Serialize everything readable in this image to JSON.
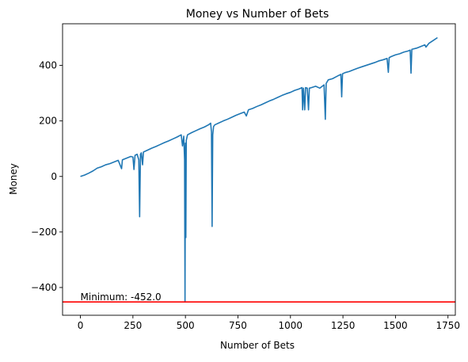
{
  "chart_data": {
    "type": "line",
    "title": "Money vs Number of Bets",
    "xlabel": "Number of Bets",
    "ylabel": "Money",
    "xlim": [
      -85,
      1785
    ],
    "ylim": [
      -500,
      550
    ],
    "xticks": [
      0,
      250,
      500,
      750,
      1000,
      1250,
      1500,
      1750
    ],
    "yticks": [
      -400,
      -200,
      0,
      200,
      400
    ],
    "xtick_labels": [
      "0",
      "250",
      "500",
      "750",
      "1000",
      "1250",
      "1500",
      "1750"
    ],
    "ytick_labels": [
      "−400",
      "−200",
      "0",
      "200",
      "400"
    ],
    "grid": false,
    "line_color": "#1f77b4",
    "series": [
      {
        "values": [
          [
            0,
            0
          ],
          [
            20,
            5
          ],
          [
            40,
            12
          ],
          [
            60,
            20
          ],
          [
            80,
            30
          ],
          [
            100,
            35
          ],
          [
            120,
            42
          ],
          [
            140,
            46
          ],
          [
            160,
            52
          ],
          [
            180,
            58
          ],
          [
            196,
            28
          ],
          [
            200,
            60
          ],
          [
            220,
            66
          ],
          [
            240,
            72
          ],
          [
            250,
            70
          ],
          [
            255,
            25
          ],
          [
            260,
            76
          ],
          [
            270,
            80
          ],
          [
            278,
            60
          ],
          [
            282,
            -145
          ],
          [
            286,
            80
          ],
          [
            290,
            85
          ],
          [
            296,
            42
          ],
          [
            300,
            88
          ],
          [
            320,
            95
          ],
          [
            340,
            102
          ],
          [
            360,
            108
          ],
          [
            380,
            115
          ],
          [
            400,
            122
          ],
          [
            420,
            128
          ],
          [
            440,
            135
          ],
          [
            460,
            142
          ],
          [
            480,
            150
          ],
          [
            486,
            110
          ],
          [
            492,
            145
          ],
          [
            496,
            60
          ],
          [
            498,
            -452
          ],
          [
            500,
            120
          ],
          [
            502,
            -220
          ],
          [
            504,
            130
          ],
          [
            510,
            150
          ],
          [
            530,
            158
          ],
          [
            550,
            165
          ],
          [
            570,
            172
          ],
          [
            590,
            178
          ],
          [
            610,
            186
          ],
          [
            620,
            192
          ],
          [
            624,
            160
          ],
          [
            627,
            -180
          ],
          [
            630,
            150
          ],
          [
            634,
            180
          ],
          [
            640,
            186
          ],
          [
            660,
            193
          ],
          [
            680,
            200
          ],
          [
            700,
            206
          ],
          [
            720,
            213
          ],
          [
            740,
            220
          ],
          [
            760,
            226
          ],
          [
            780,
            232
          ],
          [
            790,
            218
          ],
          [
            800,
            240
          ],
          [
            820,
            245
          ],
          [
            840,
            252
          ],
          [
            860,
            258
          ],
          [
            880,
            265
          ],
          [
            900,
            272
          ],
          [
            920,
            278
          ],
          [
            940,
            285
          ],
          [
            960,
            292
          ],
          [
            980,
            298
          ],
          [
            1000,
            303
          ],
          [
            1020,
            310
          ],
          [
            1040,
            315
          ],
          [
            1055,
            320
          ],
          [
            1058,
            240
          ],
          [
            1062,
            318
          ],
          [
            1068,
            240
          ],
          [
            1072,
            320
          ],
          [
            1080,
            318
          ],
          [
            1086,
            240
          ],
          [
            1090,
            318
          ],
          [
            1100,
            320
          ],
          [
            1120,
            325
          ],
          [
            1140,
            318
          ],
          [
            1160,
            330
          ],
          [
            1166,
            206
          ],
          [
            1170,
            335
          ],
          [
            1180,
            348
          ],
          [
            1200,
            352
          ],
          [
            1220,
            360
          ],
          [
            1240,
            368
          ],
          [
            1244,
            287
          ],
          [
            1248,
            370
          ],
          [
            1260,
            374
          ],
          [
            1280,
            378
          ],
          [
            1300,
            384
          ],
          [
            1320,
            390
          ],
          [
            1340,
            395
          ],
          [
            1360,
            400
          ],
          [
            1380,
            405
          ],
          [
            1400,
            410
          ],
          [
            1420,
            416
          ],
          [
            1440,
            420
          ],
          [
            1460,
            425
          ],
          [
            1466,
            375
          ],
          [
            1470,
            428
          ],
          [
            1480,
            432
          ],
          [
            1500,
            438
          ],
          [
            1520,
            442
          ],
          [
            1540,
            448
          ],
          [
            1560,
            452
          ],
          [
            1570,
            455
          ],
          [
            1574,
            372
          ],
          [
            1578,
            458
          ],
          [
            1600,
            462
          ],
          [
            1620,
            468
          ],
          [
            1640,
            474
          ],
          [
            1645,
            466
          ],
          [
            1660,
            480
          ],
          [
            1680,
            490
          ],
          [
            1700,
            500
          ]
        ]
      }
    ],
    "reference_line": {
      "y": -452,
      "color": "#ff0000",
      "label": "Minimum: -452.0"
    }
  }
}
